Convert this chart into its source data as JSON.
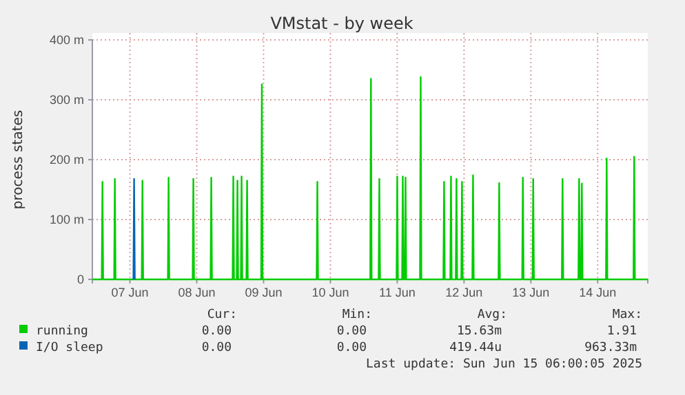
{
  "chart_data": {
    "type": "line",
    "title": "VMstat - by week",
    "ylabel": "process states",
    "xlim": [
      "2025-06-06T22:30",
      "2025-06-15T06:00"
    ],
    "xticks": [
      {
        "value": "2025-06-07T12:00",
        "label": "07 Jun"
      },
      {
        "value": "2025-06-08T12:00",
        "label": "08 Jun"
      },
      {
        "value": "2025-06-09T12:00",
        "label": "09 Jun"
      },
      {
        "value": "2025-06-10T12:00",
        "label": "10 Jun"
      },
      {
        "value": "2025-06-11T12:00",
        "label": "11 Jun"
      },
      {
        "value": "2025-06-12T12:00",
        "label": "12 Jun"
      },
      {
        "value": "2025-06-13T12:00",
        "label": "13 Jun"
      },
      {
        "value": "2025-06-14T12:00",
        "label": "14 Jun"
      }
    ],
    "ylim": [
      0,
      400
    ],
    "yticks": [
      {
        "value": 0,
        "label": "0"
      },
      {
        "value": 100,
        "label": "100 m"
      },
      {
        "value": 200,
        "label": "200 m"
      },
      {
        "value": 300,
        "label": "300 m"
      },
      {
        "value": 400,
        "label": "400 m"
      }
    ],
    "grid": true,
    "legend": "bottom",
    "marker": "none",
    "line_style": "solid",
    "series": [
      {
        "name": "running",
        "color": "#00cc00",
        "x": [
          "2025-06-06T22:30",
          "2025-06-07T01:53",
          "2025-06-07T02:08",
          "2025-06-07T02:23",
          "2025-06-07T06:20",
          "2025-06-07T06:35",
          "2025-06-07T06:50",
          "2025-06-07T16:15",
          "2025-06-07T16:30",
          "2025-06-07T16:45",
          "2025-06-08T01:38",
          "2025-06-08T01:53",
          "2025-06-08T02:08",
          "2025-06-08T10:32",
          "2025-06-08T10:47",
          "2025-06-08T11:02",
          "2025-06-08T16:58",
          "2025-06-08T17:13",
          "2025-06-08T17:28",
          "2025-06-09T00:53",
          "2025-06-09T01:08",
          "2025-06-09T01:23",
          "2025-06-09T02:22",
          "2025-06-09T02:37",
          "2025-06-09T02:52",
          "2025-06-09T03:51",
          "2025-06-09T04:06",
          "2025-06-09T04:21",
          "2025-06-09T05:50",
          "2025-06-09T06:05",
          "2025-06-09T06:20",
          "2025-06-09T11:08",
          "2025-06-09T11:23",
          "2025-06-09T11:38",
          "2025-06-10T07:04",
          "2025-06-10T07:19",
          "2025-06-10T07:34",
          "2025-06-11T02:19",
          "2025-06-11T02:34",
          "2025-06-11T02:49",
          "2025-06-11T05:20",
          "2025-06-11T05:35",
          "2025-06-11T05:50",
          "2025-06-11T11:46",
          "2025-06-11T12:01",
          "2025-06-11T12:16",
          "2025-06-11T13:45",
          "2025-06-11T14:00",
          "2025-06-11T14:15",
          "2025-06-11T14:44",
          "2025-06-11T14:59",
          "2025-06-11T15:14",
          "2025-06-11T20:11",
          "2025-06-11T20:26",
          "2025-06-11T20:41",
          "2025-06-12T04:35",
          "2025-06-12T04:50",
          "2025-06-12T05:05",
          "2025-06-12T07:04",
          "2025-06-12T07:19",
          "2025-06-12T07:34",
          "2025-06-12T09:02",
          "2025-06-12T09:17",
          "2025-06-12T09:32",
          "2025-06-12T11:01",
          "2025-06-12T11:16",
          "2025-06-12T11:31",
          "2025-06-12T14:59",
          "2025-06-12T15:14",
          "2025-06-12T15:29",
          "2025-06-13T00:23",
          "2025-06-13T00:38",
          "2025-06-13T00:53",
          "2025-06-13T08:53",
          "2025-06-13T09:08",
          "2025-06-13T09:23",
          "2025-06-13T12:36",
          "2025-06-13T12:51",
          "2025-06-13T13:06",
          "2025-06-13T23:08",
          "2025-06-13T23:23",
          "2025-06-13T23:38",
          "2025-06-14T05:05",
          "2025-06-14T05:20",
          "2025-06-14T05:35",
          "2025-06-14T06:04",
          "2025-06-14T06:19",
          "2025-06-14T06:34",
          "2025-06-14T14:59",
          "2025-06-14T15:14",
          "2025-06-14T15:29",
          "2025-06-15T00:52",
          "2025-06-15T01:07",
          "2025-06-15T01:22",
          "2025-06-15T06:00"
        ],
        "values": [
          0,
          0,
          163,
          0,
          0,
          168,
          0,
          0,
          165,
          0,
          0,
          170,
          0,
          0,
          168,
          0,
          0,
          170,
          0,
          0,
          172,
          0,
          0,
          165,
          0,
          0,
          172,
          0,
          0,
          165,
          0,
          0,
          326,
          0,
          0,
          163,
          0,
          0,
          335,
          0,
          0,
          168,
          0,
          0,
          172,
          0,
          0,
          172,
          0,
          0,
          170,
          0,
          0,
          338,
          0,
          0,
          163,
          0,
          0,
          172,
          0,
          0,
          168,
          0,
          0,
          163,
          0,
          0,
          174,
          0,
          0,
          161,
          0,
          0,
          170,
          0,
          0,
          168,
          0,
          0,
          168,
          0,
          0,
          168,
          0,
          0,
          160,
          0,
          0,
          202,
          0,
          0,
          205,
          0,
          0
        ]
      },
      {
        "name": "I/O sleep",
        "color": "#0066b3",
        "x": [
          "2025-06-07T13:15",
          "2025-06-07T13:30",
          "2025-06-07T13:45"
        ],
        "values": [
          0,
          168,
          0
        ]
      }
    ],
    "annotations": [
      "Cur:",
      "Min:",
      "Avg:",
      "Max:",
      "0.00",
      "0.00",
      "15.63m",
      "1.91",
      "0.00",
      "0.00",
      "419.44u",
      "963.33m",
      "Last update: Sun Jun 15 06:00:05 2025"
    ]
  }
}
